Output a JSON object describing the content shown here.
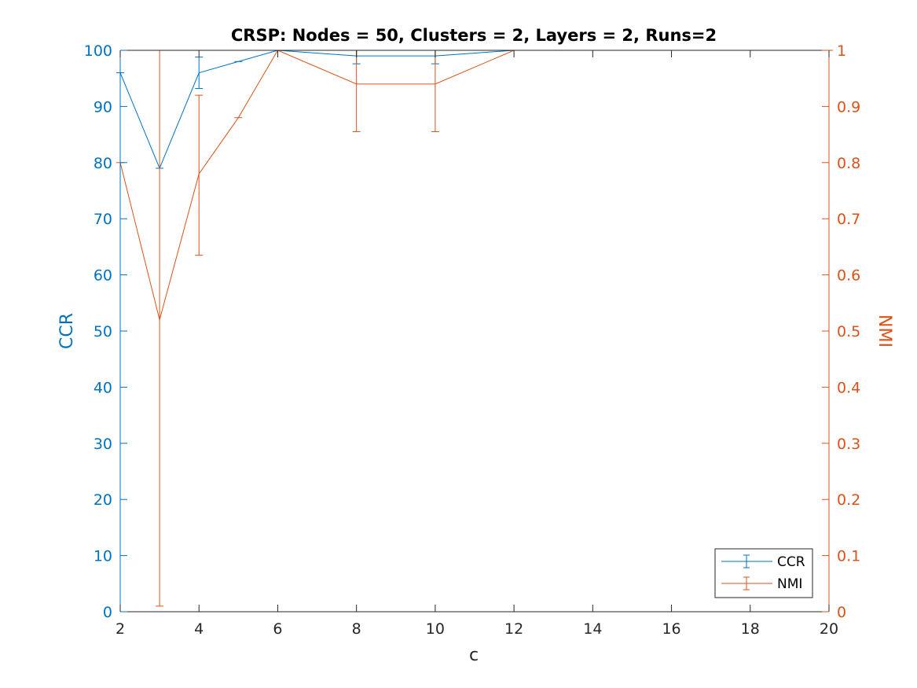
{
  "chart_data": {
    "type": "line",
    "title": "CRSP: Nodes = 50, Clusters = 2, Layers = 2, Runs=2",
    "xlabel": "c",
    "ylabel_left": "CCR",
    "ylabel_right": "NMI",
    "xlim": [
      2,
      20
    ],
    "ylim_left": [
      0,
      100
    ],
    "ylim_right": [
      0,
      1
    ],
    "x_ticks": [
      "2",
      "4",
      "6",
      "8",
      "10",
      "12",
      "14",
      "16",
      "18",
      "20"
    ],
    "y_left_ticks": [
      "0",
      "10",
      "20",
      "30",
      "40",
      "50",
      "60",
      "70",
      "80",
      "90",
      "100"
    ],
    "y_right_ticks": [
      "0",
      "0.1",
      "0.2",
      "0.3",
      "0.4",
      "0.5",
      "0.6",
      "0.7",
      "0.8",
      "0.9",
      "1"
    ],
    "grid": false,
    "legend_position": "bottom-right",
    "series": [
      {
        "name": "CCR",
        "axis": "left",
        "color": "#0072BD",
        "x": [
          2,
          3,
          4,
          5,
          6,
          8,
          10,
          12,
          14,
          16,
          18,
          20
        ],
        "y": [
          96,
          79,
          96,
          98,
          100,
          99,
          99,
          100,
          100,
          100,
          100,
          100
        ],
        "err_low": [
          96,
          79,
          93.2,
          98,
          100,
          97.6,
          97.6,
          100,
          100,
          100,
          100,
          100
        ],
        "err_high": [
          96,
          79,
          98.8,
          98,
          100,
          100,
          100,
          100,
          100,
          100,
          100,
          100
        ]
      },
      {
        "name": "NMI",
        "axis": "right",
        "color": "#D95319",
        "x": [
          2,
          3,
          4,
          5,
          6,
          8,
          10,
          12,
          14,
          16,
          18,
          20
        ],
        "y": [
          0.8,
          0.52,
          0.78,
          0.88,
          1,
          0.94,
          0.94,
          1,
          1,
          1,
          1,
          1
        ],
        "err_low": [
          0.8,
          0.01,
          0.635,
          0.88,
          1,
          0.855,
          0.855,
          1,
          1,
          1,
          1,
          1
        ],
        "err_high": [
          0.8,
          1,
          0.92,
          0.88,
          1,
          1,
          1,
          1,
          1,
          1,
          1,
          1
        ]
      }
    ]
  }
}
